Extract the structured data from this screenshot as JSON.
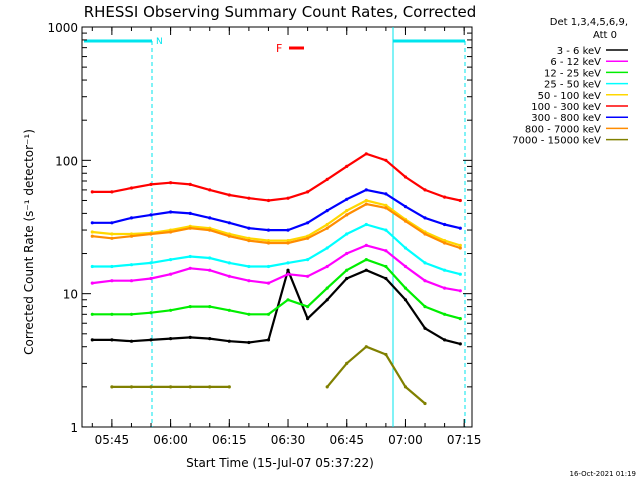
{
  "chart_data": {
    "type": "line",
    "title": "RHESSI Observing Summary Count Rates, Corrected",
    "xlabel": "Start Time (15-Jul-07 05:37:22)",
    "ylabel": "Corrected Count Rate (s⁻¹ detector⁻¹)",
    "y_scale": "log",
    "ylim": [
      1,
      1000
    ],
    "xlim": [
      "05:37:22",
      "07:17:00"
    ],
    "x_ticks": [
      "05:45",
      "06:00",
      "06:15",
      "06:30",
      "06:45",
      "07:00",
      "07:15"
    ],
    "y_ticks": [
      "1",
      "10",
      "100",
      "1000"
    ],
    "grid": false,
    "legend_placement": "right",
    "legend_header": [
      "Det 1,3,4,5,6,9,",
      "Att 0"
    ],
    "flag_label": "F",
    "night_label": "N",
    "footer_timestamp": "16-Oct-2021 01:19",
    "colors": {
      "axes": "#000000",
      "night_markers": "#00e5ee",
      "flag": "#ff0000"
    },
    "x": [
      "05:40",
      "05:45",
      "05:50",
      "05:55",
      "06:00",
      "06:05",
      "06:10",
      "06:15",
      "06:20",
      "06:25",
      "06:30",
      "06:35",
      "06:40",
      "06:45",
      "06:50",
      "06:55",
      "07:00",
      "07:05",
      "07:10",
      "07:14"
    ],
    "series": [
      {
        "name": "3 - 6 keV",
        "color": "#000000",
        "values": [
          4.5,
          4.5,
          4.4,
          4.5,
          4.6,
          4.7,
          4.6,
          4.4,
          4.3,
          4.5,
          15,
          6.5,
          9,
          13,
          15,
          13,
          9,
          5.5,
          4.5,
          4.2
        ]
      },
      {
        "name": "6 - 12 keV",
        "color": "#ff00ff",
        "values": [
          12,
          12.5,
          12.5,
          13,
          14,
          15.5,
          15,
          13.5,
          12.5,
          12,
          14,
          13.5,
          16,
          20,
          23,
          21,
          16,
          12.5,
          11,
          10.5
        ]
      },
      {
        "name": "12 - 25 keV",
        "color": "#00ee00",
        "values": [
          7,
          7,
          7,
          7.2,
          7.5,
          8,
          8,
          7.5,
          7,
          7,
          9,
          8,
          11,
          15,
          18,
          16,
          11,
          8,
          7,
          6.5
        ]
      },
      {
        "name": "25 - 50 keV",
        "color": "#00ffff",
        "values": [
          16,
          16,
          16.5,
          17,
          18,
          19,
          18.5,
          17,
          16,
          16,
          17,
          18,
          22,
          28,
          33,
          30,
          22,
          17,
          15,
          14
        ]
      },
      {
        "name": "50 - 100 keV",
        "color": "#ffd700",
        "values": [
          29,
          28,
          28,
          28.5,
          30,
          32,
          31,
          28,
          26,
          25,
          25,
          27,
          33,
          42,
          50,
          46,
          36,
          29,
          25,
          23
        ]
      },
      {
        "name": "100 - 300 keV",
        "color": "#ff0000",
        "values": [
          58,
          58,
          62,
          66,
          68,
          66,
          60,
          55,
          52,
          50,
          52,
          58,
          72,
          90,
          112,
          100,
          75,
          60,
          53,
          50
        ]
      },
      {
        "name": "300 - 800 keV",
        "color": "#0000ff",
        "values": [
          34,
          34,
          37,
          39,
          41,
          40,
          37,
          34,
          31,
          30,
          30,
          34,
          42,
          51,
          60,
          56,
          45,
          37,
          33,
          31
        ]
      },
      {
        "name": "800 - 7000 keV",
        "color": "#ff8c00",
        "values": [
          27,
          26,
          27,
          28,
          29,
          31,
          30,
          27,
          25,
          24,
          24,
          26,
          31,
          39,
          47,
          44,
          35,
          28,
          24,
          22
        ]
      },
      {
        "name": "7000 - 15000 keV",
        "color": "#808000",
        "values": [
          null,
          2,
          2,
          2,
          2,
          2,
          2,
          2,
          null,
          null,
          null,
          null,
          2,
          3,
          4,
          3.5,
          2,
          1.5,
          null,
          null
        ]
      }
    ]
  }
}
